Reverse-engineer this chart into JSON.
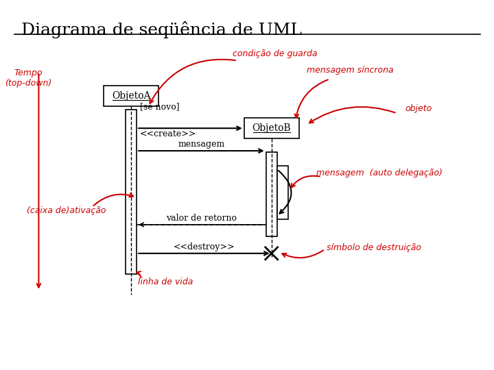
{
  "title": "Diagrama de seqüência de UML",
  "bg_color": "#ffffff",
  "text_color_black": "#000000",
  "text_color_red": "#cc0000",
  "title_fontsize": 18,
  "label_fontsize": 9,
  "obj_fontsize": 10,
  "tempo_label": "Tempo\n(top-down)",
  "obj_a_label": "ObjetoA",
  "obj_b_label": "ObjetoB",
  "guard_label": "condição de guarda",
  "sync_label": "mensagem síncrona",
  "se_novo_label": "[se novo]",
  "create_label": "<<create>>",
  "mensagem_label": "mensagem",
  "auto_label": "mensagem  (auto delegação)",
  "caixa_label": "(caixa de)ativação",
  "retorno_label": "valor de retorno",
  "destroy_label": "<<destroy>>",
  "simbolo_label": "símbolo de destruição",
  "vida_label": "linha de vida",
  "objeto_label": "objeto"
}
